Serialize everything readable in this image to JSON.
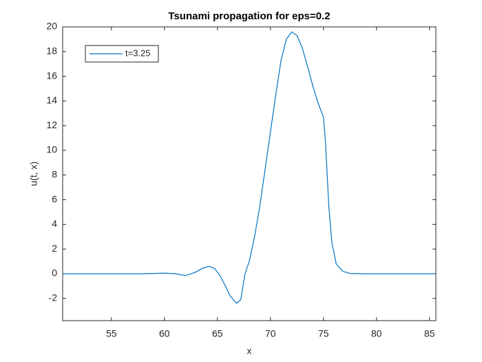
{
  "chart_data": {
    "type": "line",
    "title": "Tsunami propagation for eps=0.2",
    "xlabel": "x",
    "ylabel": "u(t, x)",
    "x": [
      50.4,
      52,
      54,
      56,
      58,
      59,
      60,
      61,
      62,
      63,
      63.6,
      64.2,
      64.7,
      65.2,
      65.7,
      66.2,
      66.8,
      67.2,
      67.6,
      68,
      68.5,
      69,
      69.5,
      70,
      70.5,
      71,
      71.5,
      72,
      72.5,
      73,
      73.5,
      74,
      74.5,
      75,
      75.2,
      75.5,
      75.8,
      76.2,
      76.8,
      77.5,
      79,
      82,
      85.6
    ],
    "series": [
      {
        "name": "t=3.25",
        "color": "#0072bd",
        "values": [
          0,
          0,
          0,
          0,
          0,
          0.02,
          0.05,
          0,
          -0.15,
          0.15,
          0.45,
          0.6,
          0.45,
          -0.1,
          -0.9,
          -1.8,
          -2.4,
          -2.1,
          0,
          1.0,
          3.0,
          5.5,
          8.5,
          11.5,
          14.5,
          17.3,
          19.0,
          19.6,
          19.3,
          18.3,
          16.8,
          15.2,
          13.8,
          12.7,
          10.5,
          5.5,
          2.5,
          0.8,
          0.2,
          0.02,
          0,
          0,
          0
        ]
      }
    ],
    "xlim": [
      50.4,
      85.6
    ],
    "ylim": [
      -3.8,
      20
    ],
    "xticks": [
      55,
      60,
      65,
      70,
      75,
      80,
      85
    ],
    "yticks": [
      -2,
      0,
      2,
      4,
      6,
      8,
      10,
      12,
      14,
      16,
      18,
      20
    ],
    "legend": "northwest",
    "grid": false
  }
}
